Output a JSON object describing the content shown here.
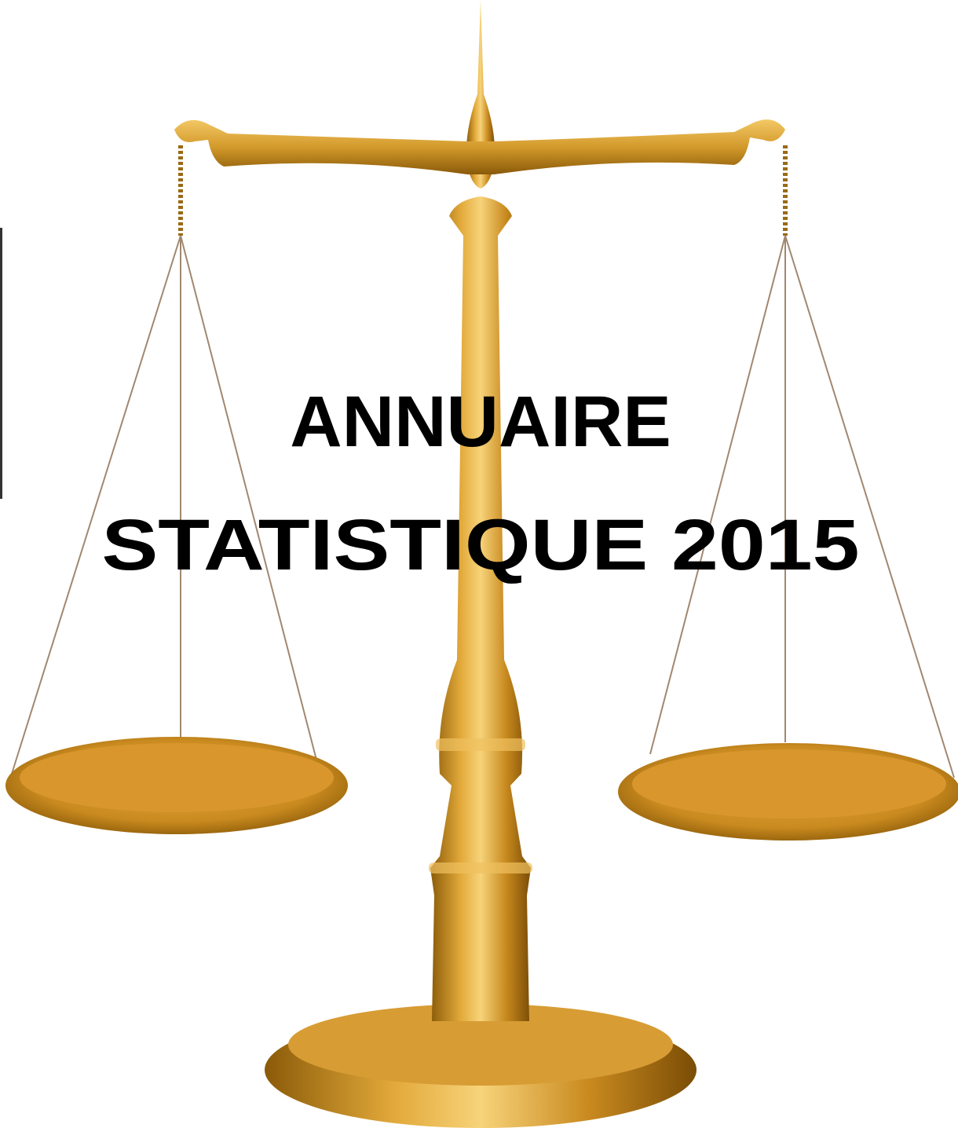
{
  "title_lines": [
    "ANNUAIRE",
    "STATISTIQUE 2015"
  ]
}
